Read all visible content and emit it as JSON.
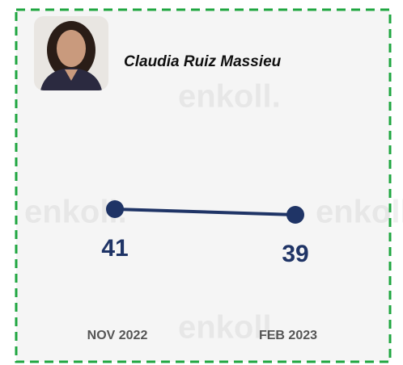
{
  "chart_data": {
    "type": "line",
    "title": "Claudia Ruiz Massieu",
    "watermark": "enkoll.",
    "categories": [
      "NOV 2022",
      "FEB 2023"
    ],
    "values": [
      41,
      39
    ],
    "color": "#1f3466",
    "ylim": [
      0,
      100
    ]
  }
}
